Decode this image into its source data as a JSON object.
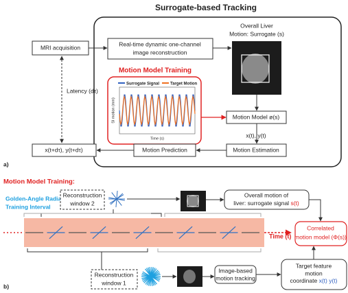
{
  "panel_a": {
    "title": "Surrogate-based Tracking",
    "mri": "MRI acquisition",
    "recon": [
      "Real-time dynamic one-channel",
      "image reconstruction"
    ],
    "overall": [
      "Overall Liver",
      "Motion: Surrogate (s)"
    ],
    "training_title": "Motion Model Training",
    "legend": [
      "Surrogate Signal",
      "Target Motion"
    ],
    "x_axis": "Time (s)",
    "y_axis": "SI motion (mm)",
    "motion_model": "Motion Model ø(s)",
    "xy": "x(t), y(t)",
    "estimation": "Motion Estimation",
    "prediction": "Motion Prediction",
    "output": "x(t+dτ), y(t+dτ)",
    "latency": "Latency (dτ)",
    "label": "a)"
  },
  "panel_b": {
    "title": "Motion Model Training:",
    "interval": [
      "Golden-Angle Radial",
      "Training Interval"
    ],
    "window2": [
      "Reconstruction",
      "window 2"
    ],
    "overall": [
      "Overall motion of",
      "liver: surrogate signal ",
      "s(t)"
    ],
    "correlated": [
      "Correlated",
      "motion model (Φ(s))"
    ],
    "time": "Time (t)",
    "window1": [
      "Reconstruction",
      "window 1"
    ],
    "tracking": [
      "Image-based",
      "motion tracking"
    ],
    "target": [
      "Target feature",
      "motion",
      "coordinate ",
      "x(t) y(t)"
    ],
    "label": "b)"
  }
}
